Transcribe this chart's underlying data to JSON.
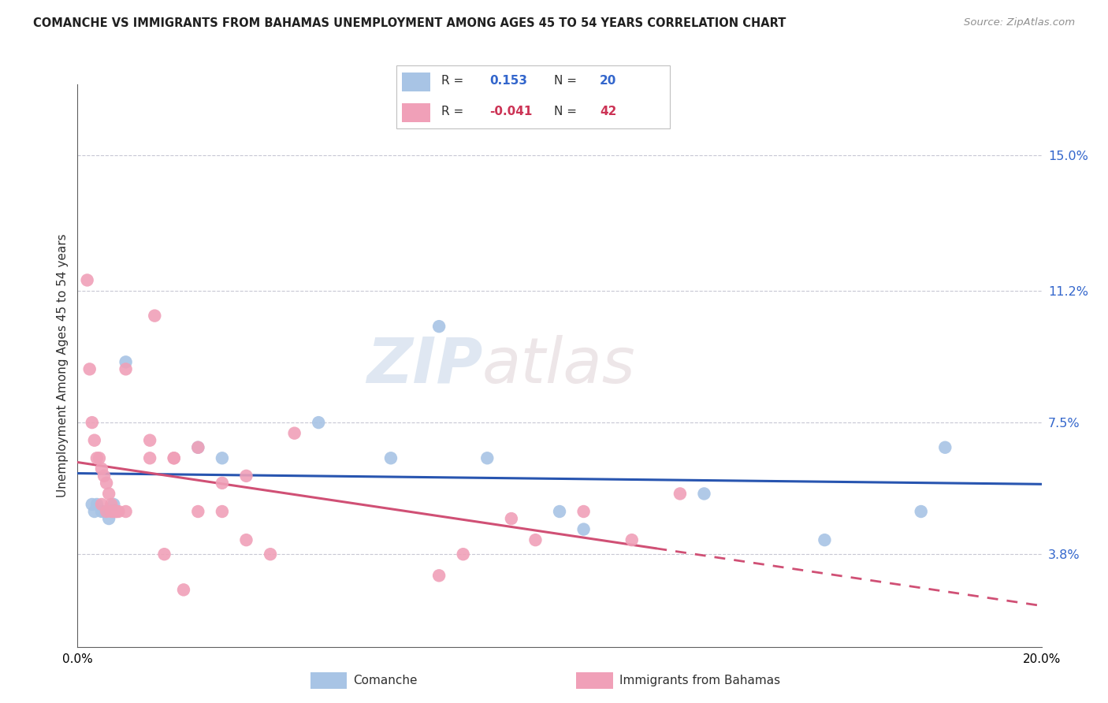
{
  "title": "COMANCHE VS IMMIGRANTS FROM BAHAMAS UNEMPLOYMENT AMONG AGES 45 TO 54 YEARS CORRELATION CHART",
  "source": "Source: ZipAtlas.com",
  "ylabel": "Unemployment Among Ages 45 to 54 years",
  "ytick_labels": [
    "3.8%",
    "7.5%",
    "11.2%",
    "15.0%"
  ],
  "ytick_vals": [
    3.8,
    7.5,
    11.2,
    15.0
  ],
  "xlim": [
    0.0,
    20.0
  ],
  "ylim": [
    1.2,
    17.0
  ],
  "comanche_color": "#a8c4e5",
  "bahamas_color": "#f0a0b8",
  "comanche_line_color": "#2855b0",
  "bahamas_line_color": "#d05075",
  "watermark_1": "ZIP",
  "watermark_2": "atlas",
  "comanche_x": [
    0.4,
    0.5,
    1.0,
    2.5,
    3.0,
    5.0,
    6.5,
    7.5,
    8.5,
    10.0,
    10.5,
    13.0,
    15.5,
    17.5,
    18.0,
    0.3,
    0.35,
    0.55,
    0.65,
    0.75
  ],
  "comanche_y": [
    5.2,
    5.0,
    9.2,
    6.8,
    6.5,
    7.5,
    6.5,
    10.2,
    6.5,
    5.0,
    4.5,
    5.5,
    4.2,
    5.0,
    6.8,
    5.2,
    5.0,
    5.0,
    4.8,
    5.2
  ],
  "bahamas_x": [
    0.2,
    0.25,
    0.3,
    0.35,
    0.4,
    0.45,
    0.5,
    0.55,
    0.6,
    0.65,
    0.7,
    0.75,
    0.8,
    0.85,
    1.0,
    1.5,
    1.6,
    2.0,
    2.5,
    3.0,
    3.5,
    4.5,
    9.0,
    10.5,
    11.5,
    12.5,
    1.5,
    2.0,
    2.5,
    3.0,
    0.5,
    0.6,
    0.7,
    0.8,
    1.0,
    1.8,
    2.2,
    3.5,
    4.0,
    7.5,
    8.0,
    9.5
  ],
  "bahamas_y": [
    11.5,
    9.0,
    7.5,
    7.0,
    6.5,
    6.5,
    6.2,
    6.0,
    5.8,
    5.5,
    5.2,
    5.0,
    5.0,
    5.0,
    9.0,
    7.0,
    10.5,
    6.5,
    6.8,
    5.8,
    6.0,
    7.2,
    4.8,
    5.0,
    4.2,
    5.5,
    6.5,
    6.5,
    5.0,
    5.0,
    5.2,
    5.0,
    5.0,
    5.0,
    5.0,
    3.8,
    2.8,
    4.2,
    3.8,
    3.2,
    3.8,
    4.2
  ],
  "r_comanche": "0.153",
  "n_comanche": "20",
  "r_bahamas": "-0.041",
  "n_bahamas": "42"
}
